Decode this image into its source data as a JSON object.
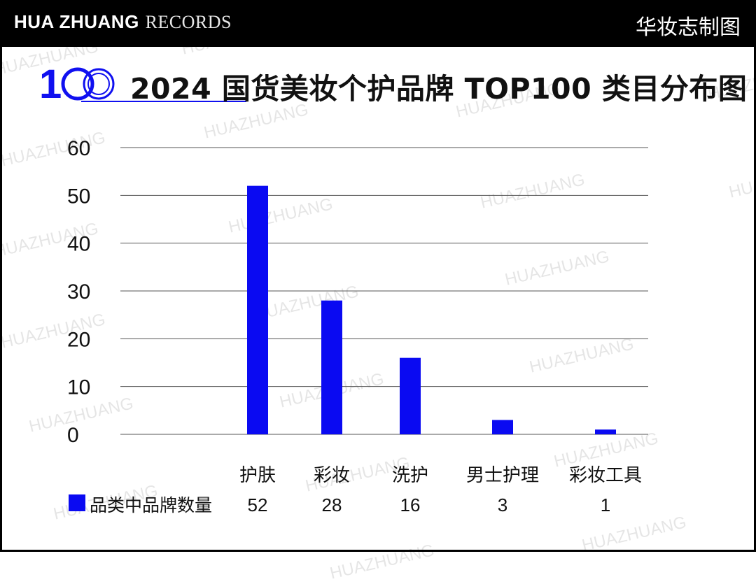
{
  "header": {
    "brand_bold": "HUA ZHUANG",
    "brand_light": "RECORDS",
    "right_label": "华妆志制图"
  },
  "logo": {
    "text": "100",
    "color": "#1010f0"
  },
  "watermark_text": "HUAZHUANG",
  "colors": {
    "bar": "#0a0af2",
    "grid": "#555555",
    "accent": "#1010f0"
  },
  "chart_data": {
    "type": "bar",
    "title": "2024 国货美妆个护品牌 TOP100 类目分布图",
    "categories": [
      "护肤",
      "彩妆",
      "洗护",
      "男士护理",
      "彩妆工具"
    ],
    "series": [
      {
        "name": "品类中品牌数量",
        "values": [
          52,
          28,
          16,
          3,
          1
        ]
      }
    ],
    "ylim": [
      0,
      60
    ],
    "yticks": [
      0,
      10,
      20,
      30,
      40,
      50,
      60
    ],
    "grid": true,
    "legend": "bottom-left, as data table row"
  }
}
